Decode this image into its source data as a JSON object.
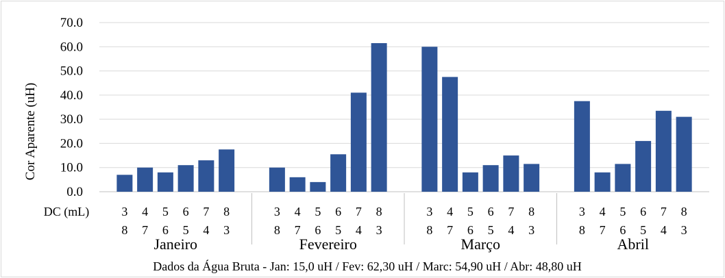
{
  "chart_data": {
    "type": "bar",
    "ylabel": "Cor Aparente (uH)",
    "xlabel": "DC (mL)",
    "ylim": [
      0,
      70
    ],
    "yticks": [
      "0.0",
      "10.0",
      "20.0",
      "30.0",
      "40.0",
      "50.0",
      "60.0",
      "70.0"
    ],
    "grid": true,
    "legend": "none",
    "groups": [
      {
        "label": "Janeiro",
        "categories": [
          [
            "3",
            "8"
          ],
          [
            "4",
            "7"
          ],
          [
            "5",
            "6"
          ],
          [
            "6",
            "5"
          ],
          [
            "7",
            "4"
          ],
          [
            "8",
            "3"
          ]
        ],
        "values": [
          7.0,
          10.0,
          8.0,
          11.0,
          13.0,
          17.5
        ]
      },
      {
        "label": "Fevereiro",
        "categories": [
          [
            "3",
            "8"
          ],
          [
            "4",
            "7"
          ],
          [
            "5",
            "6"
          ],
          [
            "6",
            "5"
          ],
          [
            "7",
            "4"
          ],
          [
            "8",
            "3"
          ]
        ],
        "values": [
          10.0,
          6.0,
          4.0,
          15.5,
          41.0,
          61.5
        ]
      },
      {
        "label": "Março",
        "categories": [
          [
            "3",
            "8"
          ],
          [
            "4",
            "7"
          ],
          [
            "5",
            "6"
          ],
          [
            "6",
            "5"
          ],
          [
            "7",
            "4"
          ],
          [
            "8",
            "3"
          ]
        ],
        "values": [
          60.0,
          47.5,
          8.0,
          11.0,
          15.0,
          11.5
        ]
      },
      {
        "label": "Abril",
        "categories": [
          [
            "3",
            "8"
          ],
          [
            "4",
            "7"
          ],
          [
            "5",
            "6"
          ],
          [
            "6",
            "5"
          ],
          [
            "7",
            "4"
          ],
          [
            "8",
            "3"
          ]
        ],
        "values": [
          37.5,
          8.0,
          11.5,
          21.0,
          33.5,
          31.0
        ]
      }
    ],
    "footnote": "Dados da Água Bruta - Jan: 15,0 uH / Fev: 62,30 uH / Marc: 54,90 uH / Abr: 48,80 uH",
    "colors": {
      "bar": "#2f5597",
      "grid": "#d9d9d9",
      "separator": "#bfbfbf",
      "frame": "#d9d9d9"
    }
  }
}
